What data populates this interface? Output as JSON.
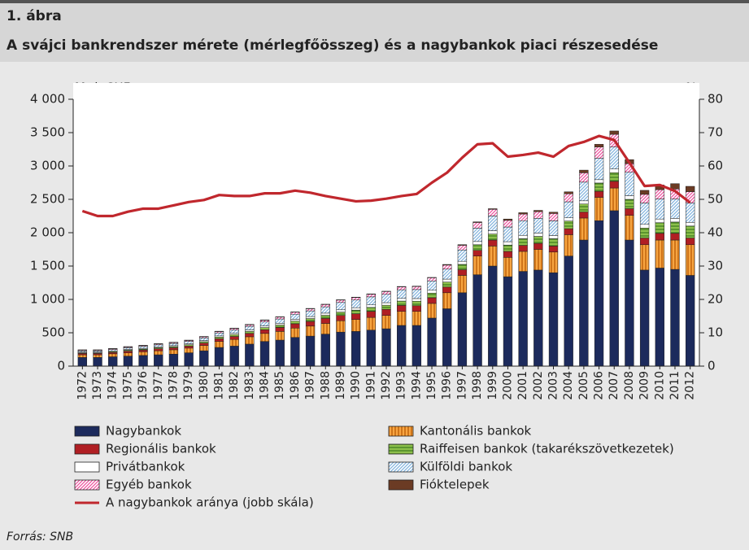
{
  "chart_data": {
    "type": "bar",
    "stacked": true,
    "title": "1. ábra",
    "subtitle": "A svájci bankrendszer mérete (mérlegfőösszeg) és a nagybankok piaci részesedése",
    "y_label": "Mrd. CHF",
    "y2_label": "%",
    "source": "Forrás: SNB",
    "categories": [
      "1972",
      "1973",
      "1974",
      "1975",
      "1976",
      "1977",
      "1978",
      "1979",
      "1980",
      "1981",
      "1982",
      "1983",
      "1984",
      "1985",
      "1986",
      "1987",
      "1988",
      "1989",
      "1990",
      "1991",
      "1992",
      "1993",
      "1994",
      "1995",
      "1996",
      "1997",
      "1998",
      "1999",
      "2000",
      "2001",
      "2002",
      "2003",
      "2004",
      "2005",
      "2006",
      "2007",
      "2008",
      "2009",
      "2010",
      "2011",
      "2012"
    ],
    "ylim": [
      0,
      4000
    ],
    "yticks": [
      0,
      {
        "value": 500,
        "label": "500"
      },
      {
        "value": 1000,
        "label": "1 000"
      },
      {
        "value": 1500,
        "label": "1 500"
      },
      {
        "value": 2000,
        "label": "2 000"
      },
      {
        "value": 2500,
        "label": "2 500"
      },
      {
        "value": 3000,
        "label": "3 000"
      },
      {
        "value": 3500,
        "label": "3 500"
      },
      {
        "value": 4000,
        "label": "4 000"
      }
    ],
    "y2lim": [
      0,
      80
    ],
    "y2ticks": [
      0,
      10,
      20,
      30,
      40,
      50,
      60,
      70,
      80
    ],
    "series": [
      {
        "name": "Nagybankok",
        "color": "#1c2a5c",
        "hatch": "none",
        "values": [
          130,
          130,
          140,
          150,
          160,
          170,
          180,
          200,
          230,
          280,
          300,
          330,
          370,
          390,
          430,
          450,
          480,
          510,
          520,
          540,
          560,
          610,
          610,
          720,
          860,
          1100,
          1370,
          1500,
          1340,
          1420,
          1440,
          1400,
          1650,
          1890,
          2180,
          2330,
          1890,
          1440,
          1470,
          1450,
          1360
        ]
      },
      {
        "name": "Kantonális bankok",
        "color": "#f7a541",
        "hatch": "vertical",
        "values": [
          40,
          40,
          45,
          50,
          55,
          60,
          65,
          70,
          80,
          90,
          100,
          110,
          120,
          130,
          140,
          150,
          160,
          170,
          180,
          190,
          200,
          210,
          210,
          220,
          240,
          260,
          280,
          300,
          290,
          300,
          310,
          310,
          320,
          330,
          350,
          340,
          370,
          380,
          420,
          440,
          460
        ]
      },
      {
        "name": "Regionális bankok",
        "color": "#b01e23",
        "hatch": "none",
        "values": [
          20,
          20,
          20,
          25,
          25,
          30,
          30,
          30,
          35,
          40,
          45,
          50,
          55,
          60,
          65,
          70,
          75,
          80,
          85,
          90,
          90,
          90,
          85,
          85,
          85,
          85,
          85,
          90,
          90,
          90,
          90,
          90,
          90,
          90,
          90,
          100,
          100,
          100,
          100,
          100,
          100
        ]
      },
      {
        "name": "Raiffeisen bankok (takarékszövetkezetek)",
        "color": "#8dc04b",
        "hatch": "horizontal",
        "values": [
          10,
          10,
          12,
          14,
          15,
          16,
          18,
          20,
          22,
          25,
          28,
          30,
          33,
          36,
          40,
          43,
          47,
          50,
          55,
          60,
          63,
          65,
          68,
          70,
          75,
          80,
          85,
          90,
          95,
          100,
          105,
          110,
          115,
          120,
          125,
          130,
          140,
          150,
          160,
          170,
          180
        ]
      },
      {
        "name": "Privátbankok",
        "color": "#ffffff",
        "hatch": "none",
        "values": [
          10,
          10,
          10,
          12,
          12,
          13,
          14,
          15,
          16,
          18,
          20,
          22,
          24,
          26,
          28,
          30,
          32,
          34,
          36,
          38,
          38,
          40,
          40,
          42,
          44,
          46,
          48,
          50,
          50,
          50,
          50,
          48,
          48,
          48,
          50,
          55,
          55,
          55,
          55,
          55,
          55
        ]
      },
      {
        "name": "Külföldi bankok",
        "color": "#7fb2dd",
        "hatch": "diagonal",
        "values": [
          20,
          20,
          22,
          25,
          28,
          30,
          32,
          35,
          40,
          45,
          50,
          55,
          60,
          65,
          75,
          85,
          95,
          110,
          115,
          120,
          125,
          130,
          135,
          140,
          150,
          170,
          200,
          220,
          220,
          220,
          220,
          220,
          240,
          280,
          320,
          330,
          350,
          320,
          300,
          290,
          290
        ]
      },
      {
        "name": "Egyéb bankok",
        "color": "#ee4f9c",
        "hatch": "diagonal",
        "values": [
          10,
          10,
          10,
          12,
          12,
          13,
          14,
          15,
          17,
          20,
          22,
          24,
          26,
          28,
          30,
          32,
          34,
          36,
          38,
          40,
          42,
          44,
          46,
          48,
          60,
          70,
          85,
          100,
          100,
          100,
          100,
          110,
          120,
          140,
          170,
          190,
          130,
          130,
          140,
          150,
          170
        ]
      },
      {
        "name": "Fióktelepek",
        "color": "#6b3b24",
        "hatch": "none",
        "values": [
          5,
          5,
          5,
          5,
          5,
          5,
          5,
          5,
          5,
          5,
          5,
          5,
          5,
          5,
          5,
          5,
          5,
          5,
          5,
          5,
          5,
          5,
          5,
          5,
          10,
          10,
          10,
          10,
          20,
          20,
          20,
          20,
          30,
          40,
          40,
          50,
          60,
          60,
          70,
          80,
          80
        ]
      },
      {
        "name": "A nagybankok aránya (jobb skála)",
        "color": "#c0272d",
        "type": "line",
        "axis": "y2",
        "values": [
          46.5,
          45,
          45,
          46.3,
          47.2,
          47.2,
          48.2,
          49.2,
          49.8,
          51.3,
          51,
          51,
          51.8,
          51.8,
          52.6,
          52,
          51,
          50.2,
          49.4,
          49.6,
          50.2,
          51,
          51.6,
          55,
          58,
          62.5,
          66.5,
          66.8,
          62.8,
          63.3,
          64,
          62.8,
          66,
          67.2,
          69,
          67.8,
          61,
          54,
          54.3,
          52.5,
          49
        ]
      }
    ]
  }
}
